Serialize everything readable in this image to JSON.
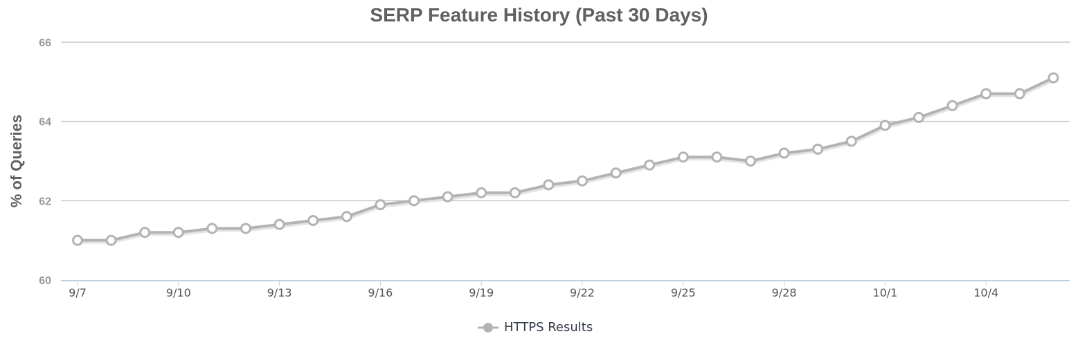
{
  "chart_data": {
    "type": "line",
    "title": "SERP Feature History (Past 30 Days)",
    "xlabel": "",
    "ylabel": "% of Queries",
    "ylim": [
      60,
      66
    ],
    "yticks": [
      60,
      62,
      64,
      66
    ],
    "grid": true,
    "legend_position": "bottom-center",
    "x_tick_labels": [
      "9/7",
      "9/10",
      "9/13",
      "9/16",
      "9/19",
      "9/22",
      "9/25",
      "9/28",
      "10/1",
      "10/4"
    ],
    "x": [
      "9/7",
      "9/8",
      "9/9",
      "9/10",
      "9/11",
      "9/12",
      "9/13",
      "9/14",
      "9/15",
      "9/16",
      "9/17",
      "9/18",
      "9/19",
      "9/20",
      "9/21",
      "9/22",
      "9/23",
      "9/24",
      "9/25",
      "9/26",
      "9/27",
      "9/28",
      "9/29",
      "9/30",
      "10/1",
      "10/2",
      "10/3",
      "10/4",
      "10/5",
      "10/6"
    ],
    "series": [
      {
        "name": "HTTPS Results",
        "color": "#b3b3b3",
        "values": [
          61.0,
          61.0,
          61.2,
          61.2,
          61.3,
          61.3,
          61.4,
          61.5,
          61.6,
          61.9,
          62.0,
          62.1,
          62.2,
          62.2,
          62.4,
          62.5,
          62.7,
          62.9,
          63.1,
          63.1,
          63.0,
          63.2,
          63.3,
          63.5,
          63.9,
          64.1,
          64.4,
          64.7,
          64.7,
          65.1
        ]
      }
    ]
  },
  "legend": {
    "label": "HTTPS Results"
  }
}
